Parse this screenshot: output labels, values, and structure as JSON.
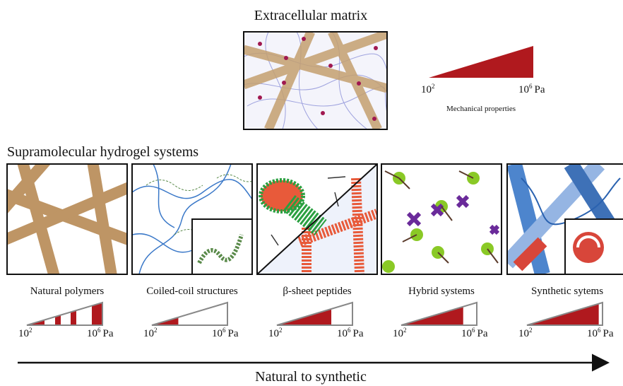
{
  "ecm": {
    "title": "Extracellular matrix",
    "scale": {
      "min_base": "10",
      "min_exp": "2",
      "max_base": "10",
      "max_exp": "6",
      "unit": "Pa",
      "caption": "Mechanical properties"
    }
  },
  "section_title": "Supramolecular hydrogel systems",
  "panels": [
    {
      "label": "Natural polymers",
      "scale": {
        "min_base": "10",
        "min_exp": "2",
        "max_base": "10",
        "max_exp": "6",
        "unit": "Pa"
      }
    },
    {
      "label": "Coiled-coil structures",
      "scale": {
        "min_base": "10",
        "min_exp": "2",
        "max_base": "10",
        "max_exp": "6",
        "unit": "Pa"
      }
    },
    {
      "label": "β-sheet peptides",
      "scale": {
        "min_base": "10",
        "min_exp": "2",
        "max_base": "10",
        "max_exp": "6",
        "unit": "Pa"
      }
    },
    {
      "label": "Hybrid systems",
      "scale": {
        "min_base": "10",
        "min_exp": "2",
        "max_base": "10",
        "max_exp": "6",
        "unit": "Pa"
      }
    },
    {
      "label": "Synthetic sytems",
      "scale": {
        "min_base": "10",
        "min_exp": "2",
        "max_base": "10",
        "max_exp": "6",
        "unit": "Pa"
      }
    }
  ],
  "arrow_label": "Natural to synthetic"
}
